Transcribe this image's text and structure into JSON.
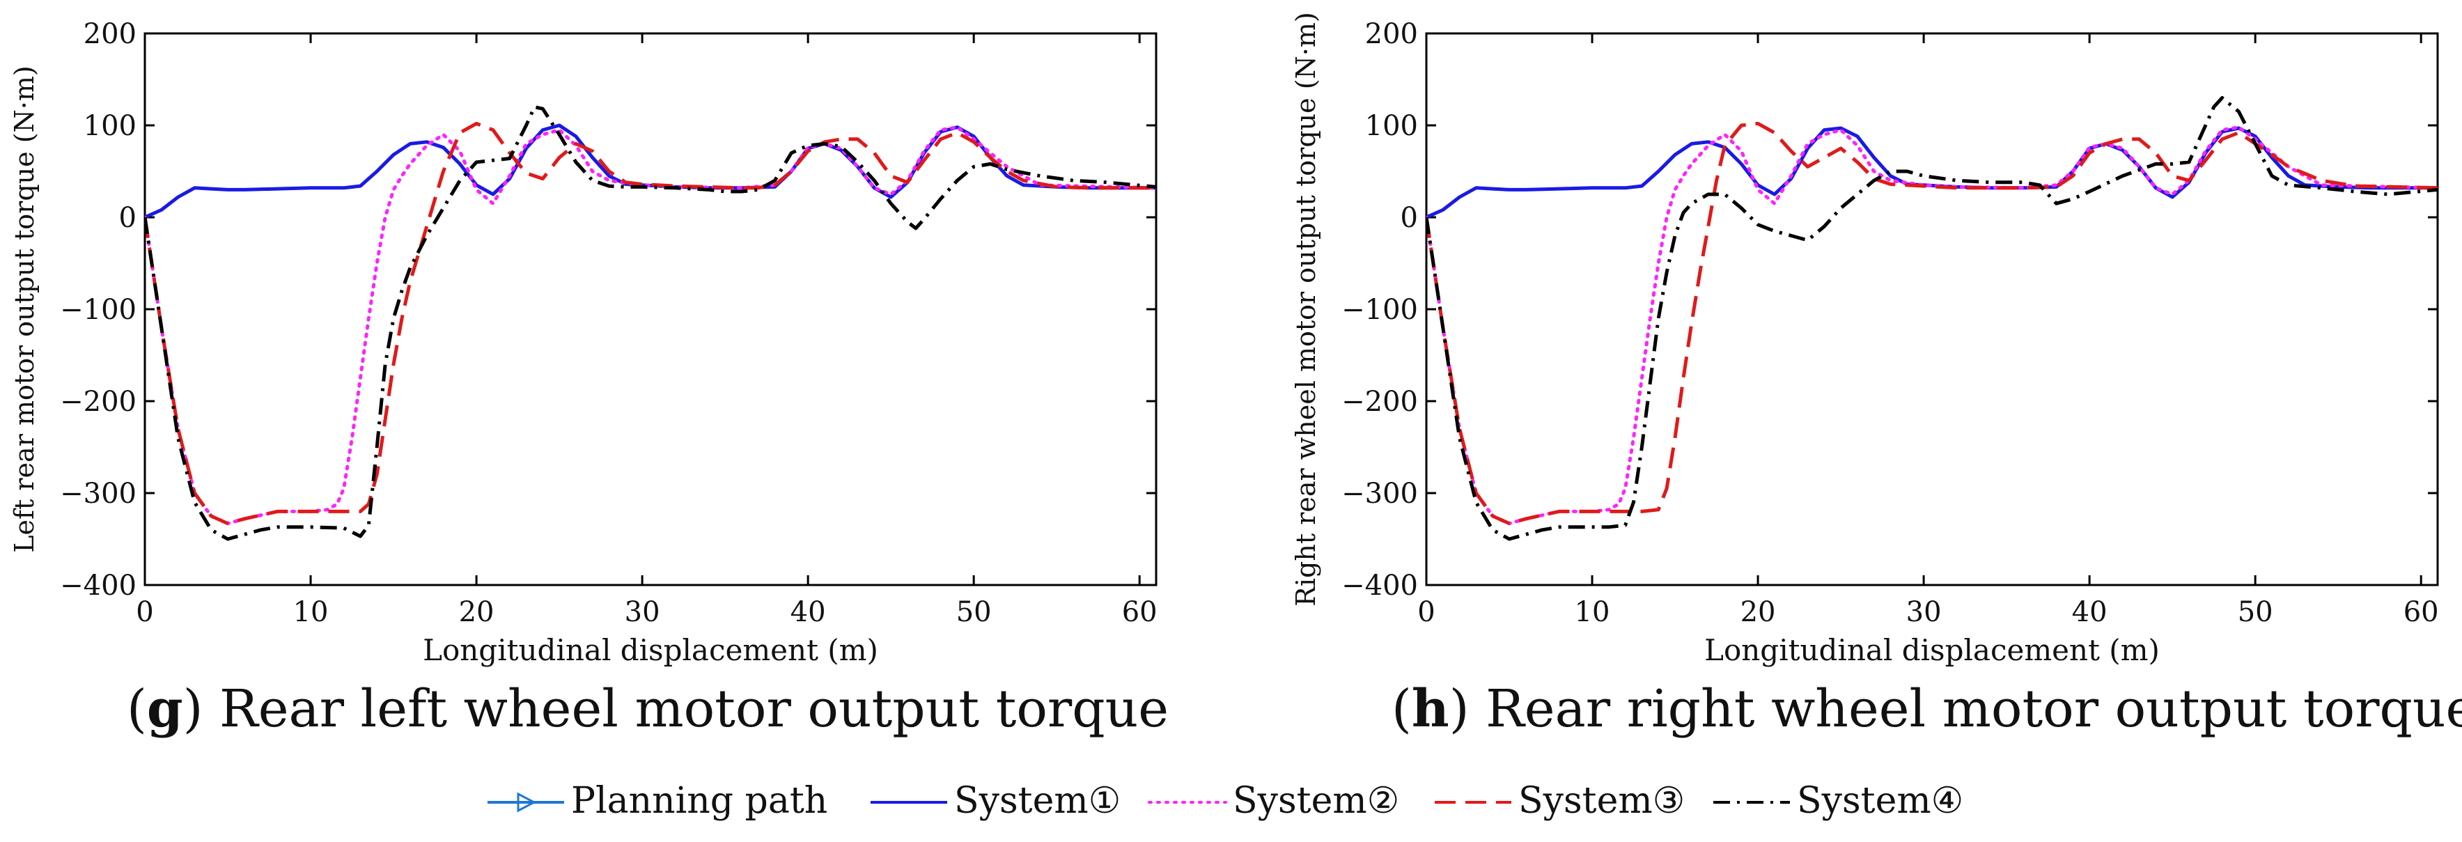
{
  "panels": [
    {
      "id": "g",
      "caption_letter": "g",
      "caption_text": "Rear left wheel motor output torque",
      "chart_data": {
        "type": "line",
        "xlabel": "Longitudinal displacement (m)",
        "ylabel": "Left rear motor output torque (N·m)",
        "xlim": [
          0,
          61
        ],
        "ylim": [
          -400,
          200
        ],
        "xticks": [
          0,
          10,
          20,
          30,
          40,
          50,
          60
        ],
        "yticks": [
          -400,
          -300,
          -200,
          -100,
          0,
          100,
          200
        ],
        "series": [
          {
            "name": "System①",
            "color": "#1a1ae6",
            "dash": "solid",
            "x": [
              0,
              1,
              2,
              3,
              4,
              5,
              6,
              8,
              10,
              12,
              13,
              14,
              15,
              16,
              17,
              18,
              19,
              20,
              21,
              22,
              23,
              24,
              25,
              26,
              27,
              28,
              29,
              30,
              32,
              34,
              36,
              38,
              39,
              40,
              41,
              42,
              43,
              44,
              45,
              46,
              47,
              48,
              49,
              50,
              51,
              52,
              53,
              55,
              57,
              61
            ],
            "y": [
              0,
              8,
              22,
              32,
              31,
              30,
              30,
              31,
              32,
              32,
              34,
              50,
              68,
              80,
              82,
              76,
              58,
              35,
              25,
              42,
              75,
              95,
              100,
              88,
              65,
              45,
              36,
              35,
              33,
              32,
              32,
              33,
              50,
              75,
              80,
              73,
              55,
              32,
              22,
              38,
              70,
              93,
              98,
              88,
              65,
              45,
              35,
              33,
              32,
              32
            ]
          },
          {
            "name": "System②",
            "color": "#ff22ff",
            "dash": "dot",
            "x": [
              0,
              1,
              2,
              3,
              4,
              5,
              6,
              8,
              10,
              11,
              11.6,
              12,
              12.5,
              13,
              13.5,
              14,
              14.5,
              15,
              15.5,
              16,
              17,
              18,
              19,
              20,
              21,
              22,
              23,
              24,
              25,
              26,
              27,
              28,
              30,
              32,
              36,
              38,
              39,
              40,
              41,
              42,
              43,
              44,
              45,
              46,
              47,
              48,
              49,
              50,
              52,
              54,
              61
            ],
            "y": [
              0,
              -120,
              -230,
              -300,
              -325,
              -333,
              -328,
              -320,
              -320,
              -318,
              -312,
              -295,
              -240,
              -175,
              -110,
              -50,
              0,
              30,
              45,
              58,
              78,
              90,
              72,
              30,
              15,
              45,
              80,
              90,
              95,
              78,
              50,
              40,
              35,
              33,
              32,
              35,
              50,
              76,
              80,
              75,
              55,
              32,
              25,
              40,
              72,
              95,
              98,
              85,
              55,
              35,
              32
            ]
          },
          {
            "name": "System③",
            "color": "#e01a1a",
            "dash": "dash",
            "x": [
              0,
              1,
              2,
              3,
              4,
              5,
              6,
              8,
              10,
              12,
              13,
              13.5,
              14,
              14.5,
              15,
              15.5,
              16,
              16.5,
              17,
              18,
              19,
              20,
              21,
              22,
              23,
              24,
              25,
              26,
              27,
              28,
              29,
              30,
              32,
              34,
              36,
              37,
              38,
              39,
              40,
              41,
              42,
              43,
              44,
              45,
              46,
              47,
              48,
              49,
              50,
              51,
              52,
              53,
              55,
              57,
              61
            ],
            "y": [
              0,
              -120,
              -230,
              -300,
              -325,
              -333,
              -328,
              -320,
              -320,
              -320,
              -320,
              -312,
              -280,
              -220,
              -160,
              -110,
              -70,
              -40,
              -10,
              50,
              92,
              102,
              95,
              70,
              48,
              42,
              65,
              80,
              72,
              50,
              38,
              36,
              34,
              33,
              32,
              32,
              35,
              50,
              72,
              82,
              85,
              85,
              70,
              45,
              38,
              62,
              85,
              92,
              82,
              65,
              50,
              40,
              33,
              32,
              32
            ]
          },
          {
            "name": "System④",
            "color": "#000000",
            "dash": "dashdot",
            "x": [
              0,
              1,
              2,
              3,
              4,
              5,
              6,
              7,
              8,
              10,
              12,
              13,
              13.5,
              14,
              14.5,
              15,
              15.5,
              16,
              17,
              18,
              19,
              20,
              21,
              22,
              23,
              23.5,
              24,
              25,
              26,
              27,
              28,
              29,
              30,
              32,
              34,
              35,
              36,
              37,
              38,
              39,
              40,
              41,
              42,
              43,
              44,
              45,
              46,
              46.5,
              47,
              48,
              49,
              50,
              51,
              52,
              54,
              56,
              58,
              61
            ],
            "y": [
              0,
              -120,
              -240,
              -310,
              -340,
              -350,
              -345,
              -340,
              -337,
              -337,
              -338,
              -347,
              -335,
              -250,
              -160,
              -110,
              -80,
              -55,
              -20,
              10,
              40,
              60,
              62,
              64,
              100,
              120,
              118,
              90,
              60,
              40,
              34,
              33,
              33,
              32,
              30,
              28,
              28,
              30,
              40,
              70,
              78,
              80,
              77,
              60,
              40,
              15,
              -5,
              -12,
              -2,
              20,
              40,
              55,
              58,
              52,
              45,
              40,
              38,
              33
            ]
          }
        ]
      }
    },
    {
      "id": "h",
      "caption_letter": "h",
      "caption_text": "Rear right wheel motor output torque",
      "chart_data": {
        "type": "line",
        "xlabel": "Longitudinal displacement (m)",
        "ylabel": "Right rear wheel motor output torque (N·m)",
        "xlim": [
          0,
          61
        ],
        "ylim": [
          -400,
          200
        ],
        "xticks": [
          0,
          10,
          20,
          30,
          40,
          50,
          60
        ],
        "yticks": [
          -400,
          -300,
          -200,
          -100,
          0,
          100,
          200
        ],
        "series": [
          {
            "name": "System①",
            "color": "#1a1ae6",
            "dash": "solid",
            "x": [
              0,
              1,
              2,
              3,
              4,
              5,
              6,
              8,
              10,
              12,
              13,
              14,
              15,
              16,
              17,
              18,
              19,
              20,
              21,
              22,
              23,
              24,
              25,
              26,
              27,
              28,
              29,
              30,
              32,
              34,
              36,
              38,
              39,
              40,
              41,
              42,
              43,
              44,
              45,
              46,
              47,
              48,
              49,
              50,
              51,
              52,
              53,
              55,
              57,
              61
            ],
            "y": [
              0,
              8,
              22,
              32,
              31,
              30,
              30,
              31,
              32,
              32,
              34,
              50,
              68,
              80,
              82,
              76,
              58,
              35,
              25,
              42,
              75,
              95,
              97,
              88,
              65,
              45,
              36,
              35,
              33,
              32,
              32,
              33,
              50,
              75,
              80,
              73,
              55,
              32,
              22,
              38,
              70,
              93,
              97,
              88,
              65,
              45,
              35,
              33,
              32,
              32
            ]
          },
          {
            "name": "System②",
            "color": "#ff22ff",
            "dash": "dot",
            "x": [
              0,
              1,
              2,
              3,
              4,
              5,
              6,
              8,
              10,
              11,
              11.6,
              12,
              12.5,
              13,
              13.5,
              14,
              14.5,
              15,
              15.5,
              16,
              17,
              18,
              19,
              20,
              21,
              22,
              23,
              24,
              25,
              26,
              27,
              28,
              30,
              32,
              36,
              38,
              39,
              40,
              41,
              42,
              43,
              44,
              45,
              46,
              47,
              48,
              49,
              50,
              52,
              54,
              61
            ],
            "y": [
              0,
              -120,
              -230,
              -300,
              -325,
              -333,
              -328,
              -320,
              -320,
              -318,
              -312,
              -295,
              -240,
              -175,
              -110,
              -50,
              0,
              30,
              45,
              58,
              78,
              90,
              72,
              30,
              15,
              45,
              80,
              90,
              95,
              78,
              50,
              40,
              35,
              33,
              32,
              35,
              50,
              76,
              80,
              75,
              55,
              32,
              25,
              40,
              72,
              95,
              98,
              85,
              55,
              35,
              32
            ]
          },
          {
            "name": "System③",
            "color": "#e01a1a",
            "dash": "dash",
            "x": [
              0,
              1,
              2,
              3,
              4,
              5,
              6,
              8,
              10,
              12,
              13,
              14,
              14.5,
              15,
              15.5,
              16,
              16.5,
              17,
              17.5,
              18,
              19,
              20,
              21,
              22,
              23,
              24,
              25,
              26,
              27,
              28,
              30,
              32,
              34,
              36,
              38,
              39,
              40,
              41,
              42,
              43,
              44,
              45,
              46,
              47,
              48,
              49,
              50,
              51,
              52,
              54,
              56,
              61
            ],
            "y": [
              0,
              -120,
              -230,
              -300,
              -325,
              -333,
              -328,
              -320,
              -320,
              -320,
              -320,
              -318,
              -295,
              -240,
              -175,
              -115,
              -60,
              -10,
              40,
              78,
              100,
              102,
              92,
              72,
              55,
              65,
              75,
              60,
              42,
              36,
              34,
              32,
              32,
              32,
              33,
              45,
              70,
              80,
              85,
              85,
              70,
              45,
              40,
              62,
              85,
              92,
              80,
              68,
              55,
              40,
              34,
              32
            ]
          },
          {
            "name": "System④",
            "color": "#000000",
            "dash": "dashdot",
            "x": [
              0,
              1,
              2,
              3,
              4,
              5,
              6,
              7,
              8,
              10,
              11,
              12,
              12.5,
              13,
              13.5,
              14,
              14.5,
              15,
              15.5,
              16,
              17,
              18,
              19,
              20,
              21,
              22,
              23,
              24,
              25,
              26,
              27,
              28,
              29,
              30,
              32,
              34,
              36,
              37,
              38,
              39,
              40,
              42,
              44,
              45,
              46,
              47,
              47.5,
              48,
              49,
              50,
              51,
              52,
              54,
              56,
              58,
              61
            ],
            "y": [
              0,
              -120,
              -240,
              -310,
              -340,
              -350,
              -345,
              -340,
              -337,
              -337,
              -337,
              -335,
              -310,
              -250,
              -180,
              -110,
              -60,
              -20,
              5,
              15,
              25,
              25,
              10,
              -8,
              -15,
              -20,
              -25,
              -10,
              10,
              25,
              40,
              50,
              50,
              45,
              40,
              38,
              38,
              35,
              15,
              20,
              28,
              45,
              58,
              58,
              60,
              100,
              120,
              130,
              115,
              80,
              45,
              35,
              32,
              28,
              25,
              30
            ]
          }
        ]
      }
    }
  ],
  "legend": [
    {
      "label": "Planning path",
      "color": "#1f77d4",
      "dash": "solid",
      "marker": "triangle"
    },
    {
      "label": "System①",
      "color": "#1a1ae6",
      "dash": "solid",
      "marker": ""
    },
    {
      "label": "System②",
      "color": "#ff22ff",
      "dash": "dot",
      "marker": ""
    },
    {
      "label": "System③",
      "color": "#e01a1a",
      "dash": "dash",
      "marker": ""
    },
    {
      "label": "System④",
      "color": "#000000",
      "dash": "dashdot",
      "marker": ""
    }
  ]
}
